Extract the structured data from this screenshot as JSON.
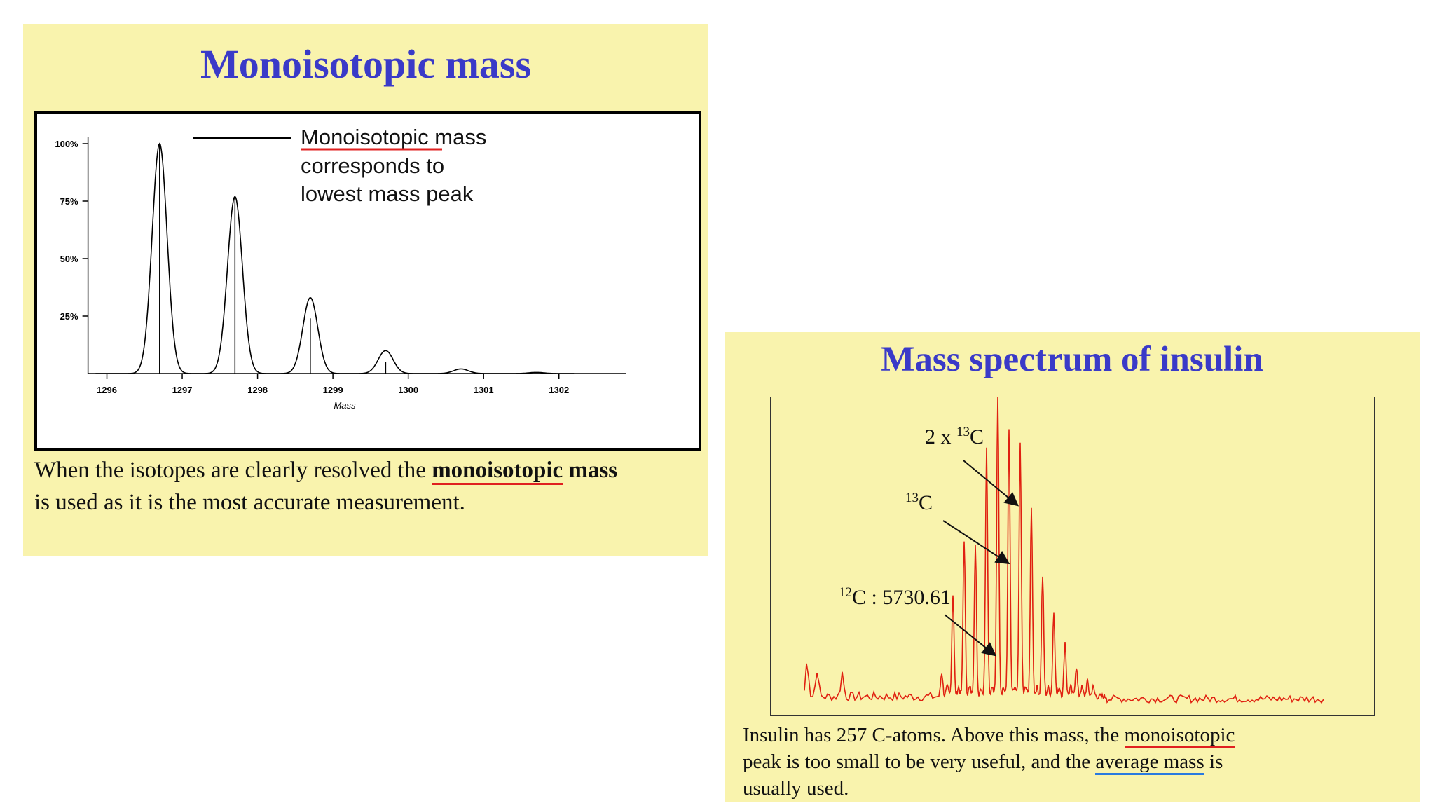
{
  "slide1": {
    "title": "Monoisotopic mass",
    "annotation": {
      "line1_underlined": "Monoisotopic",
      "line1_rest": " mass",
      "line2": "corresponds to",
      "line3": "lowest mass peak"
    },
    "caption": {
      "part1": "When the isotopes are clearly resolved the ",
      "bold_underlined": "monoisotopic",
      "bold_rest": " mass",
      "part2": "is used as it is the most accurate measurement."
    }
  },
  "slide2": {
    "title": "Mass spectrum of insulin",
    "labels": {
      "two_c13_prefix": "2 x ",
      "two_c13_sup": "13",
      "two_c13_suffix": "C",
      "c13_sup": "13",
      "c13_suffix": "C",
      "c12_sup": "12",
      "c12_suffix": "C : 5730.61"
    },
    "caption": {
      "part1": "Insulin has 257 C-atoms. Above this mass, the ",
      "u_red": "monoisotopic",
      "part2": "peak is too small to be very useful, and the ",
      "u_blue": "average mass",
      "part3": " is",
      "part4": "usually used."
    }
  },
  "colors": {
    "slide_bg": "#f9f3ad",
    "title": "#3a3ac8",
    "spectrum": "#e02010",
    "underline_red": "#e02020",
    "underline_blue": "#2a7ae0"
  },
  "chart_data": [
    {
      "type": "line",
      "xlabel": "Mass",
      "ylabel": "",
      "xlim": [
        1295.8,
        1302.7
      ],
      "ylim": [
        0,
        100
      ],
      "x_ticks": [
        "1296",
        "1297",
        "1298",
        "1299",
        "1300",
        "1301",
        "1302"
      ],
      "y_ticks": [
        "25%",
        "50%",
        "75%",
        "100%"
      ],
      "y_tick_values": [
        25,
        50,
        75,
        100
      ],
      "peaks": [
        {
          "mass": 1296.7,
          "intensity": 100,
          "stick": 100
        },
        {
          "mass": 1297.7,
          "intensity": 77,
          "stick": 77
        },
        {
          "mass": 1298.7,
          "intensity": 33,
          "stick": 24
        },
        {
          "mass": 1299.7,
          "intensity": 10,
          "stick": 5
        },
        {
          "mass": 1300.7,
          "intensity": 2,
          "stick": 0
        },
        {
          "mass": 1301.7,
          "intensity": 0.5,
          "stick": 0
        }
      ]
    },
    {
      "type": "line",
      "title": "",
      "xlabel": "",
      "ylabel": "",
      "peaks_relative": [
        8,
        34,
        52,
        50,
        82,
        100,
        88,
        84,
        62,
        40,
        28,
        18,
        10,
        5
      ],
      "grid": false
    }
  ]
}
